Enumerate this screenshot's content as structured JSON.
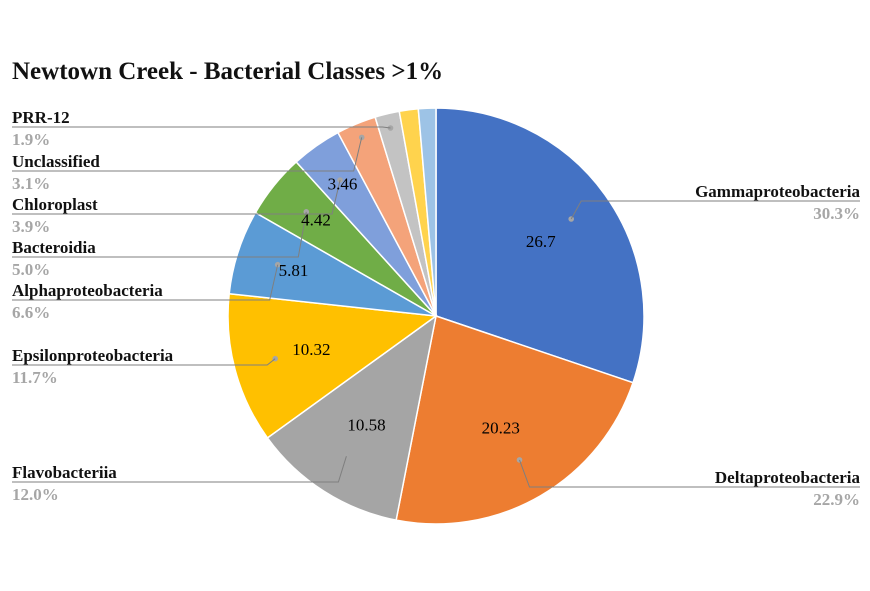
{
  "chart_data": {
    "type": "pie",
    "title": "Newtown Creek - Bacterial Classes >1%",
    "slices": [
      {
        "name": "Gammaproteobacteria",
        "value": 26.7,
        "percent": "30.3%",
        "color": "#4472C4",
        "value_label": "26.7",
        "show_value": true,
        "show_category": true
      },
      {
        "name": "Deltaproteobacteria",
        "value": 20.23,
        "percent": "22.9%",
        "color": "#ED7D31",
        "value_label": "20.23",
        "show_value": true,
        "show_category": true
      },
      {
        "name": "Flavobacteriia",
        "value": 10.58,
        "percent": "12.0%",
        "color": "#A5A5A5",
        "value_label": "10.58",
        "show_value": true,
        "show_category": true
      },
      {
        "name": "Epsilonproteobacteria",
        "value": 10.32,
        "percent": "11.7%",
        "color": "#FFC000",
        "value_label": "10.32",
        "show_value": true,
        "show_category": true
      },
      {
        "name": "Alphaproteobacteria",
        "value": 5.81,
        "percent": "6.6%",
        "color": "#5B9BD5",
        "value_label": "5.81",
        "show_value": true,
        "show_category": true
      },
      {
        "name": "Bacteroidia",
        "value": 4.42,
        "percent": "5.0%",
        "color": "#70AD47",
        "value_label": "4.42",
        "show_value": true,
        "show_category": true
      },
      {
        "name": "Chloroplast",
        "value": 3.46,
        "percent": "3.9%",
        "color": "#7F9FDB",
        "value_label": "3.46",
        "show_value": true,
        "show_category": true
      },
      {
        "name": "Unclassified",
        "value": 2.73,
        "percent": "3.1%",
        "color": "#F4A37A",
        "show_value": false,
        "show_category": true
      },
      {
        "name": "PRR-12",
        "value": 1.68,
        "percent": "1.9%",
        "color": "#C3C3C3",
        "show_value": false,
        "show_category": true
      },
      {
        "name": "",
        "value": 1.3,
        "color": "#FFD34D",
        "show_value": false,
        "show_category": false
      },
      {
        "name": "",
        "value": 1.2,
        "color": "#9DC3E6",
        "show_value": false,
        "show_category": false
      }
    ],
    "start_angle_deg": 0,
    "direction": "clockwise",
    "legend": "none",
    "category_label_color": "#111111",
    "percent_label_color": "#A6A6A6",
    "leader_line_color": "#7F7F7F"
  }
}
